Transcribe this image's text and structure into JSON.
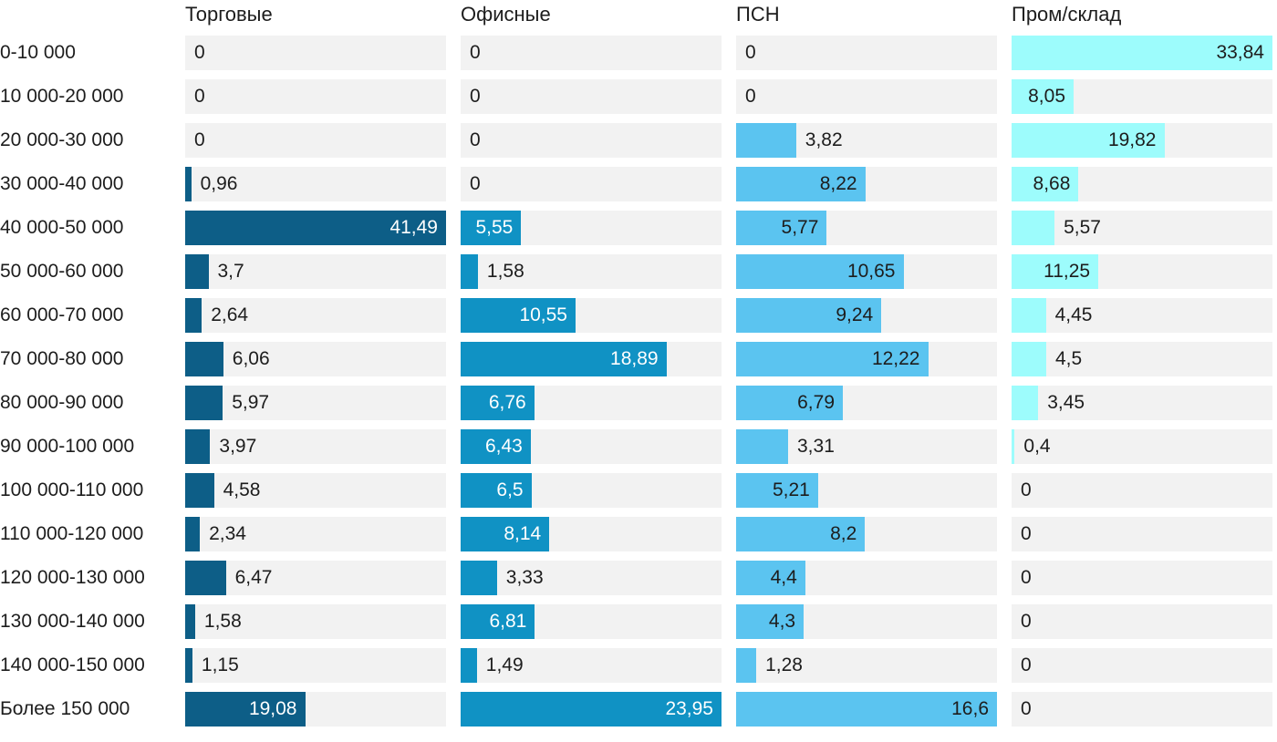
{
  "chart_data": {
    "type": "bar",
    "orientation": "horizontal",
    "scaling": "each column scaled to its own maximum (max bar = full track width)",
    "grid": "off",
    "track_color": "#f2f2f2",
    "label_color": "#1d1d1d",
    "categories": [
      "0-10 000",
      "10 000-20 000",
      "20 000-30 000",
      "30 000-40 000",
      "40 000-50 000",
      "50 000-60 000",
      "60 000-70 000",
      "70 000-80 000",
      "80 000-90 000",
      "90 000-100 000",
      "100 000-110 000",
      "110 000-120 000",
      "120 000-130 000",
      "130 000-140 000",
      "140 000-150 000",
      "Более 150 000"
    ],
    "series": [
      {
        "name": "Торговые",
        "color": "#0d5e87",
        "inside_text_color": "#ffffff",
        "values": [
          0,
          0,
          0,
          0.96,
          41.49,
          3.7,
          2.64,
          6.06,
          5.97,
          3.97,
          4.58,
          2.34,
          6.47,
          1.58,
          1.15,
          19.08
        ],
        "labels": [
          "0",
          "0",
          "0",
          "0,96",
          "41,49",
          "3,7",
          "2,64",
          "6,06",
          "5,97",
          "3,97",
          "4,58",
          "2,34",
          "6,47",
          "1,58",
          "1,15",
          "19,08"
        ]
      },
      {
        "name": "Офисные",
        "color": "#1092c4",
        "inside_text_color": "#ffffff",
        "values": [
          0,
          0,
          0,
          0,
          5.55,
          1.58,
          10.55,
          18.89,
          6.76,
          6.43,
          6.5,
          8.14,
          3.33,
          6.81,
          1.49,
          23.95
        ],
        "labels": [
          "0",
          "0",
          "0",
          "0",
          "5,55",
          "1,58",
          "10,55",
          "18,89",
          "6,76",
          "6,43",
          "6,5",
          "8,14",
          "3,33",
          "6,81",
          "1,49",
          "23,95"
        ]
      },
      {
        "name": "ПСН",
        "color": "#5bc4f0",
        "inside_text_color": "#1d1d1d",
        "values": [
          0,
          0,
          3.82,
          8.22,
          5.77,
          10.65,
          9.24,
          12.22,
          6.79,
          3.31,
          5.21,
          8.2,
          4.4,
          4.3,
          1.28,
          16.6
        ],
        "labels": [
          "0",
          "0",
          "3,82",
          "8,22",
          "5,77",
          "10,65",
          "9,24",
          "12,22",
          "6,79",
          "3,31",
          "5,21",
          "8,2",
          "4,4",
          "4,3",
          "1,28",
          "16,6"
        ]
      },
      {
        "name": "Пром/склад",
        "color": "#9dfcfc",
        "inside_text_color": "#1d1d1d",
        "values": [
          33.84,
          8.05,
          19.82,
          8.68,
          5.57,
          11.25,
          4.45,
          4.5,
          3.45,
          0.4,
          0,
          0,
          0,
          0,
          0,
          0
        ],
        "labels": [
          "33,84",
          "8,05",
          "19,82",
          "8,68",
          "5,57",
          "11,25",
          "4,45",
          "4,5",
          "3,45",
          "0,4",
          "0",
          "0",
          "0",
          "0",
          "0",
          "0"
        ]
      }
    ]
  }
}
